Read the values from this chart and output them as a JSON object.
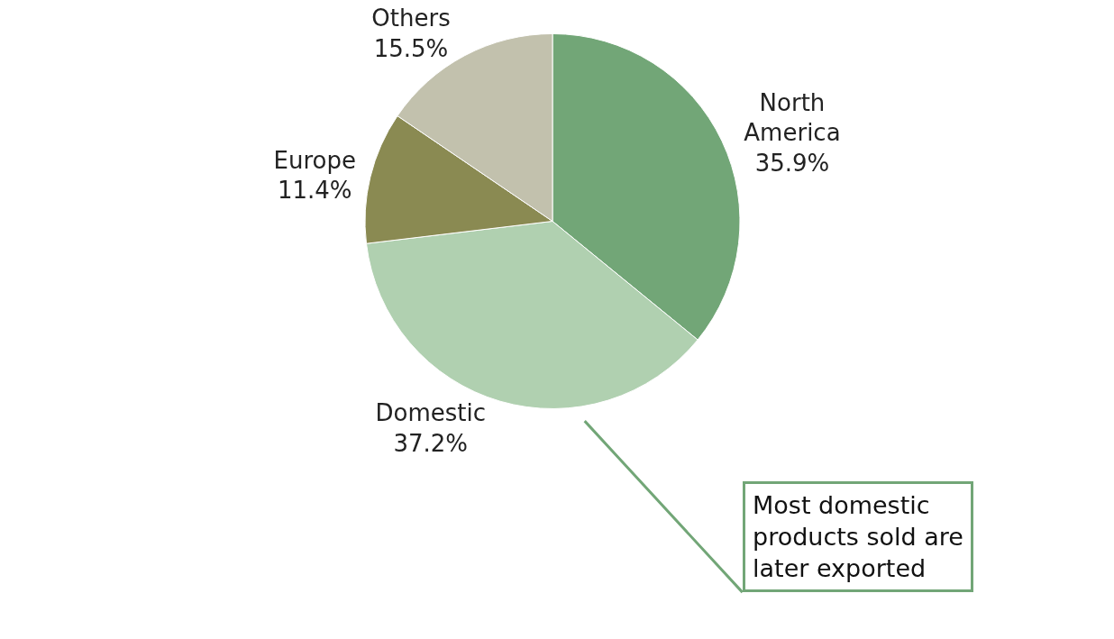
{
  "chart_data": {
    "type": "pie",
    "categories": [
      "North America",
      "Domestic",
      "Europe",
      "Others"
    ],
    "values": [
      35.9,
      37.2,
      11.4,
      15.5
    ],
    "value_labels": [
      "35.9%",
      "37.2%",
      "11.4%",
      "15.5%"
    ],
    "colors": [
      "#72a677",
      "#b0d0b0",
      "#8a8a52",
      "#c2c1ad"
    ],
    "legend": false,
    "annotations": [
      "Most domestic products sold are later exported"
    ]
  }
}
